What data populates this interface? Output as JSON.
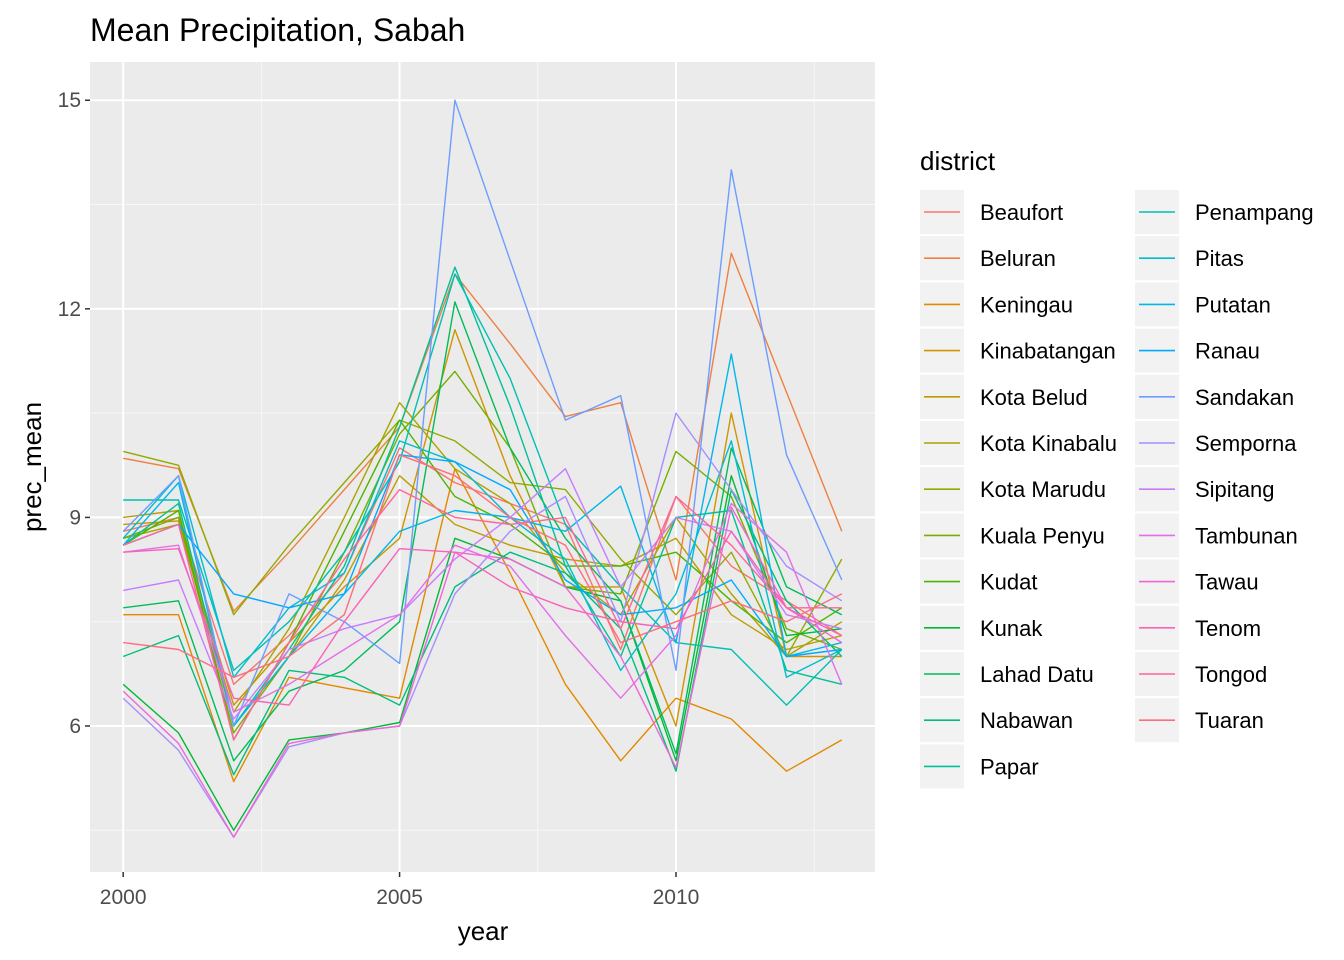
{
  "chart_data": {
    "type": "line",
    "title": "Mean Precipitation, Sabah",
    "xlabel": "year",
    "ylabel": "prec_mean",
    "xlim": [
      1999.4,
      2013.6
    ],
    "ylim": [
      3.9,
      15.55
    ],
    "x_ticks": [
      2000,
      2005,
      2010
    ],
    "x_tick_labels": [
      "2000",
      "2005",
      "2010"
    ],
    "y_ticks": [
      6,
      9,
      12,
      15
    ],
    "y_tick_labels": [
      "6",
      "9",
      "12",
      "15"
    ],
    "grid": true,
    "legend_title": "district",
    "legend_position": "right",
    "x": [
      2000,
      2001,
      2002,
      2003,
      2004,
      2005,
      2006,
      2007,
      2008,
      2009,
      2010,
      2011,
      2012,
      2013
    ],
    "series": [
      {
        "name": "Beaufort",
        "color": "#F8766D",
        "values": [
          8.8,
          9.0,
          6.6,
          7.3,
          8.2,
          10.0,
          9.5,
          9.2,
          8.9,
          7.1,
          9.3,
          8.3,
          7.8,
          7.3
        ]
      },
      {
        "name": "Beluran",
        "color": "#EE8042",
        "values": [
          9.85,
          9.7,
          7.65,
          8.5,
          9.4,
          10.3,
          12.5,
          11.5,
          10.45,
          10.65,
          8.1,
          12.8,
          10.8,
          8.8
        ]
      },
      {
        "name": "Keningau",
        "color": "#E18A00",
        "values": [
          7.6,
          7.6,
          5.2,
          6.7,
          6.55,
          6.4,
          9.7,
          8.2,
          6.6,
          5.5,
          6.4,
          6.1,
          5.35,
          5.8
        ]
      },
      {
        "name": "Kinabatangan",
        "color": "#D09400",
        "values": [
          8.9,
          8.95,
          6.3,
          7.2,
          8.0,
          8.7,
          11.7,
          9.6,
          8.0,
          8.0,
          6.0,
          10.5,
          7.0,
          7.0
        ]
      },
      {
        "name": "Kota Belud",
        "color": "#BE9C00",
        "values": [
          9.0,
          9.1,
          6.0,
          7.0,
          8.1,
          9.6,
          8.9,
          8.6,
          8.4,
          8.3,
          8.7,
          7.6,
          7.1,
          7.3
        ]
      },
      {
        "name": "Kota Kinabalu",
        "color": "#AAA300",
        "values": [
          8.7,
          8.9,
          6.2,
          7.4,
          9.0,
          10.65,
          9.7,
          9.2,
          8.2,
          7.6,
          9.0,
          7.9,
          7.0,
          7.5
        ]
      },
      {
        "name": "Kota Marudu",
        "color": "#92AA00",
        "values": [
          9.95,
          9.75,
          7.6,
          8.6,
          9.5,
          10.4,
          10.1,
          9.5,
          9.4,
          8.4,
          7.6,
          8.5,
          7.0,
          8.4
        ]
      },
      {
        "name": "Kuala Penyu",
        "color": "#77AF00",
        "values": [
          8.7,
          9.0,
          5.9,
          7.0,
          8.5,
          10.2,
          11.1,
          10.0,
          8.0,
          7.9,
          9.95,
          9.3,
          7.4,
          7.1
        ]
      },
      {
        "name": "Kudat",
        "color": "#4FB400",
        "values": [
          8.6,
          9.1,
          5.8,
          7.2,
          8.8,
          10.4,
          9.3,
          8.9,
          8.3,
          8.3,
          8.5,
          7.8,
          7.2,
          7.7
        ]
      },
      {
        "name": "Kunak",
        "color": "#00B936",
        "values": [
          6.6,
          5.9,
          4.5,
          5.8,
          5.9,
          6.05,
          8.7,
          8.4,
          8.0,
          7.8,
          5.5,
          9.6,
          7.3,
          7.4
        ]
      },
      {
        "name": "Lahad Datu",
        "color": "#00BC59",
        "values": [
          7.7,
          7.8,
          5.5,
          6.5,
          6.8,
          7.5,
          12.1,
          10.0,
          8.7,
          7.8,
          5.6,
          10.0,
          8.0,
          7.6
        ]
      },
      {
        "name": "Nabawan",
        "color": "#00BE79",
        "values": [
          7.0,
          7.3,
          5.3,
          6.8,
          6.7,
          6.3,
          8.0,
          8.5,
          8.2,
          7.4,
          5.35,
          9.4,
          7.8,
          7.0
        ]
      },
      {
        "name": "Papar",
        "color": "#00C097",
        "values": [
          8.6,
          9.2,
          6.0,
          7.1,
          8.3,
          10.3,
          12.6,
          10.6,
          8.3,
          7.0,
          9.0,
          9.1,
          6.8,
          6.6
        ]
      },
      {
        "name": "Penampang",
        "color": "#00C0B2",
        "values": [
          9.25,
          9.25,
          6.8,
          7.5,
          8.5,
          9.8,
          12.5,
          11.0,
          8.9,
          8.0,
          7.2,
          7.1,
          6.3,
          7.1
        ]
      },
      {
        "name": "Pitas",
        "color": "#00BDD0",
        "values": [
          8.7,
          9.6,
          6.7,
          7.7,
          8.2,
          10.1,
          9.8,
          9.0,
          8.4,
          6.8,
          7.9,
          10.1,
          6.7,
          7.1
        ]
      },
      {
        "name": "Putatan",
        "color": "#00B6EB",
        "values": [
          8.6,
          9.5,
          6.0,
          7.0,
          7.9,
          8.8,
          9.1,
          9.0,
          8.8,
          9.45,
          7.2,
          11.35,
          7.0,
          7.2
        ]
      },
      {
        "name": "Ranau",
        "color": "#00A9FF",
        "values": [
          8.6,
          8.9,
          7.9,
          7.7,
          7.9,
          9.9,
          9.8,
          9.4,
          8.1,
          7.6,
          7.7,
          8.1,
          7.0,
          7.1
        ]
      },
      {
        "name": "Sandakan",
        "color": "#6D9DFF",
        "values": [
          8.8,
          9.6,
          6.0,
          7.9,
          7.5,
          6.9,
          15.0,
          12.7,
          10.4,
          10.75,
          6.8,
          14.0,
          9.9,
          8.1
        ]
      },
      {
        "name": "Semporna",
        "color": "#A78DFF",
        "values": [
          6.4,
          5.65,
          4.4,
          5.7,
          5.9,
          6.0,
          7.9,
          8.8,
          9.3,
          7.5,
          10.5,
          9.4,
          8.3,
          7.8
        ]
      },
      {
        "name": "Sipitang",
        "color": "#C77CFF",
        "values": [
          7.95,
          8.1,
          6.1,
          7.1,
          7.4,
          7.6,
          8.4,
          9.0,
          9.7,
          8.0,
          9.0,
          8.8,
          7.6,
          7.4
        ]
      },
      {
        "name": "Tambunan",
        "color": "#E36FE9",
        "values": [
          8.5,
          8.6,
          6.2,
          6.6,
          7.1,
          7.6,
          8.6,
          8.3,
          7.3,
          6.4,
          7.3,
          9.2,
          8.5,
          6.6
        ]
      },
      {
        "name": "Tawau",
        "color": "#F066D6",
        "values": [
          6.5,
          5.75,
          4.4,
          5.75,
          5.9,
          6.0,
          8.5,
          8.4,
          8.0,
          7.0,
          5.4,
          9.15,
          7.7,
          7.2
        ]
      },
      {
        "name": "Tenom",
        "color": "#FA62B8",
        "values": [
          8.5,
          8.55,
          6.4,
          6.3,
          7.5,
          8.55,
          8.5,
          8.0,
          7.7,
          7.5,
          7.4,
          8.8,
          7.7,
          7.3
        ]
      },
      {
        "name": "Tongod",
        "color": "#FF659A",
        "values": [
          8.6,
          8.9,
          5.8,
          7.2,
          8.4,
          9.4,
          9.0,
          8.9,
          9.0,
          7.4,
          9.3,
          8.6,
          7.7,
          7.7
        ]
      },
      {
        "name": "Tuaran",
        "color": "#FF6C7C",
        "values": [
          7.2,
          7.1,
          6.7,
          7.0,
          7.6,
          9.9,
          9.6,
          9.0,
          8.6,
          7.2,
          7.5,
          7.8,
          7.5,
          7.9
        ]
      }
    ]
  }
}
